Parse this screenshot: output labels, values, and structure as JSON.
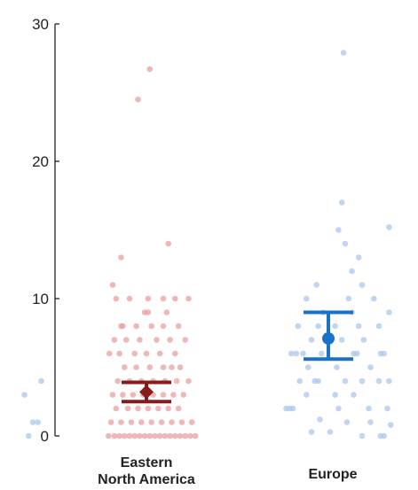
{
  "chart_data": {
    "type": "scatter",
    "title": "",
    "xlabel": "",
    "ylabel": "",
    "ylim": [
      0,
      30
    ],
    "yticks": [
      "0",
      "10",
      "20",
      "30"
    ],
    "grid": false,
    "categories": [
      {
        "label_line1": "Eastern",
        "label_line2": "North America"
      },
      {
        "label_line1": "Europe",
        "label_line2": ""
      }
    ],
    "series": [
      {
        "category": 0,
        "point_color": "#e8a0a0",
        "summary_color": "#8b1a1a",
        "marker": "diamond",
        "mean": 3.2,
        "ci": [
          2.5,
          3.9
        ],
        "points": [
          {
            "x": -0.45,
            "y": 0
          },
          {
            "x": -0.38,
            "y": 0
          },
          {
            "x": -0.32,
            "y": 0
          },
          {
            "x": -0.26,
            "y": 0
          },
          {
            "x": -0.2,
            "y": 0
          },
          {
            "x": -0.14,
            "y": 0
          },
          {
            "x": -0.08,
            "y": 0
          },
          {
            "x": -0.02,
            "y": 0
          },
          {
            "x": 0.04,
            "y": 0
          },
          {
            "x": 0.1,
            "y": 0
          },
          {
            "x": 0.16,
            "y": 0
          },
          {
            "x": 0.22,
            "y": 0
          },
          {
            "x": 0.28,
            "y": 0
          },
          {
            "x": 0.34,
            "y": 0
          },
          {
            "x": 0.4,
            "y": 0
          },
          {
            "x": 0.46,
            "y": 0
          },
          {
            "x": 0.52,
            "y": 0
          },
          {
            "x": 0.58,
            "y": 0
          },
          {
            "x": -0.42,
            "y": 1
          },
          {
            "x": -0.3,
            "y": 1
          },
          {
            "x": -0.18,
            "y": 1
          },
          {
            "x": -0.06,
            "y": 1
          },
          {
            "x": 0.06,
            "y": 1
          },
          {
            "x": 0.18,
            "y": 1
          },
          {
            "x": 0.3,
            "y": 1
          },
          {
            "x": 0.42,
            "y": 1
          },
          {
            "x": 0.54,
            "y": 1
          },
          {
            "x": -0.36,
            "y": 2
          },
          {
            "x": -0.22,
            "y": 2
          },
          {
            "x": -0.1,
            "y": 2
          },
          {
            "x": 0.02,
            "y": 2
          },
          {
            "x": 0.14,
            "y": 2
          },
          {
            "x": 0.26,
            "y": 2
          },
          {
            "x": 0.38,
            "y": 2
          },
          {
            "x": -0.4,
            "y": 3
          },
          {
            "x": -0.28,
            "y": 3
          },
          {
            "x": -0.16,
            "y": 3
          },
          {
            "x": -0.04,
            "y": 3
          },
          {
            "x": 0.08,
            "y": 3
          },
          {
            "x": 0.2,
            "y": 3
          },
          {
            "x": 0.32,
            "y": 3
          },
          {
            "x": 0.44,
            "y": 3
          },
          {
            "x": -0.34,
            "y": 4
          },
          {
            "x": -0.2,
            "y": 4
          },
          {
            "x": -0.06,
            "y": 4
          },
          {
            "x": 0.08,
            "y": 4
          },
          {
            "x": 0.22,
            "y": 4
          },
          {
            "x": 0.36,
            "y": 4
          },
          {
            "x": 0.5,
            "y": 4
          },
          {
            "x": -0.26,
            "y": 5
          },
          {
            "x": -0.12,
            "y": 5
          },
          {
            "x": 0.04,
            "y": 5
          },
          {
            "x": 0.2,
            "y": 5
          },
          {
            "x": 0.3,
            "y": 5
          },
          {
            "x": 0.4,
            "y": 5
          },
          {
            "x": -0.44,
            "y": 6
          },
          {
            "x": -0.32,
            "y": 6
          },
          {
            "x": -0.14,
            "y": 6
          },
          {
            "x": 0.0,
            "y": 6
          },
          {
            "x": 0.16,
            "y": 6
          },
          {
            "x": 0.34,
            "y": 6
          },
          {
            "x": -0.38,
            "y": 7
          },
          {
            "x": -0.24,
            "y": 7
          },
          {
            "x": -0.08,
            "y": 7
          },
          {
            "x": 0.12,
            "y": 7
          },
          {
            "x": 0.28,
            "y": 7
          },
          {
            "x": 0.46,
            "y": 7
          },
          {
            "x": -0.3,
            "y": 8
          },
          {
            "x": -0.28,
            "y": 8
          },
          {
            "x": -0.12,
            "y": 8
          },
          {
            "x": 0.06,
            "y": 8
          },
          {
            "x": 0.2,
            "y": 8
          },
          {
            "x": 0.38,
            "y": 8
          },
          {
            "x": -0.02,
            "y": 9
          },
          {
            "x": 0.02,
            "y": 9
          },
          {
            "x": 0.24,
            "y": 9
          },
          {
            "x": -0.36,
            "y": 10
          },
          {
            "x": -0.2,
            "y": 10
          },
          {
            "x": 0.02,
            "y": 10
          },
          {
            "x": 0.2,
            "y": 10
          },
          {
            "x": 0.34,
            "y": 10
          },
          {
            "x": 0.5,
            "y": 10
          },
          {
            "x": -0.4,
            "y": 11
          },
          {
            "x": -0.3,
            "y": 13
          },
          {
            "x": 0.26,
            "y": 14
          },
          {
            "x": -0.1,
            "y": 24.5
          },
          {
            "x": 0.04,
            "y": 26.7
          }
        ]
      },
      {
        "category": 1,
        "point_color": "#a8c8ee",
        "summary_color": "#1a72c8",
        "marker": "circle",
        "mean": 7.1,
        "ci": [
          5.6,
          9.0
        ],
        "points": [
          {
            "x": -0.2,
            "y": 0.3
          },
          {
            "x": 0.02,
            "y": 0.3
          },
          {
            "x": 0.4,
            "y": 0
          },
          {
            "x": 0.62,
            "y": 0
          },
          {
            "x": 0.66,
            "y": 0
          },
          {
            "x": 0.74,
            "y": 0.8
          },
          {
            "x": -0.1,
            "y": 1.2
          },
          {
            "x": 0.22,
            "y": 1
          },
          {
            "x": 0.5,
            "y": 1
          },
          {
            "x": -0.5,
            "y": 2
          },
          {
            "x": -0.46,
            "y": 2
          },
          {
            "x": -0.42,
            "y": 2
          },
          {
            "x": 0.12,
            "y": 2
          },
          {
            "x": 0.48,
            "y": 2
          },
          {
            "x": 0.7,
            "y": 2
          },
          {
            "x": -0.26,
            "y": 3
          },
          {
            "x": 0.08,
            "y": 3
          },
          {
            "x": 0.3,
            "y": 3
          },
          {
            "x": -0.34,
            "y": 4
          },
          {
            "x": -0.16,
            "y": 4
          },
          {
            "x": -0.12,
            "y": 4
          },
          {
            "x": 0.2,
            "y": 4
          },
          {
            "x": 0.4,
            "y": 4
          },
          {
            "x": 0.6,
            "y": 4
          },
          {
            "x": 0.72,
            "y": 4
          },
          {
            "x": -0.24,
            "y": 5
          },
          {
            "x": 0.1,
            "y": 5
          },
          {
            "x": 0.5,
            "y": 5
          },
          {
            "x": -0.44,
            "y": 6
          },
          {
            "x": -0.38,
            "y": 6
          },
          {
            "x": -0.3,
            "y": 6
          },
          {
            "x": -0.08,
            "y": 6
          },
          {
            "x": 0.3,
            "y": 6
          },
          {
            "x": 0.34,
            "y": 6
          },
          {
            "x": 0.62,
            "y": 6
          },
          {
            "x": 0.66,
            "y": 6
          },
          {
            "x": -0.2,
            "y": 7
          },
          {
            "x": 0.16,
            "y": 7
          },
          {
            "x": 0.42,
            "y": 7
          },
          {
            "x": -0.36,
            "y": 8
          },
          {
            "x": -0.12,
            "y": 8
          },
          {
            "x": 0.08,
            "y": 8
          },
          {
            "x": 0.36,
            "y": 8
          },
          {
            "x": 0.6,
            "y": 8
          },
          {
            "x": -0.06,
            "y": 9
          },
          {
            "x": 0.28,
            "y": 9
          },
          {
            "x": 0.72,
            "y": 9
          },
          {
            "x": -0.26,
            "y": 10
          },
          {
            "x": 0.24,
            "y": 10
          },
          {
            "x": 0.54,
            "y": 10
          },
          {
            "x": -0.14,
            "y": 11
          },
          {
            "x": 0.4,
            "y": 11
          },
          {
            "x": 0.28,
            "y": 12
          },
          {
            "x": 0.36,
            "y": 13
          },
          {
            "x": 0.2,
            "y": 14
          },
          {
            "x": 0.12,
            "y": 15
          },
          {
            "x": 0.72,
            "y": 15.2
          },
          {
            "x": 0.16,
            "y": 17
          },
          {
            "x": 0.18,
            "y": 27.9
          }
        ]
      },
      {
        "category": -1,
        "point_color": "#a8c8ee",
        "points": [
          {
            "x": 0.55,
            "y": 0
          },
          {
            "x": 0.6,
            "y": 1
          },
          {
            "x": 0.66,
            "y": 1
          },
          {
            "x": 0.5,
            "y": 3
          },
          {
            "x": 0.7,
            "y": 4
          }
        ]
      }
    ]
  }
}
